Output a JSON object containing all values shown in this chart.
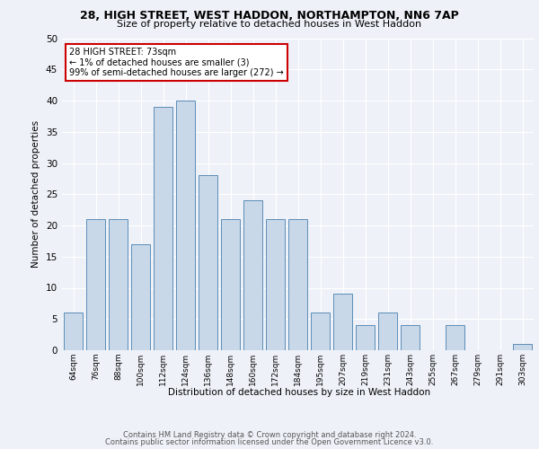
{
  "title1": "28, HIGH STREET, WEST HADDON, NORTHAMPTON, NN6 7AP",
  "title2": "Size of property relative to detached houses in West Haddon",
  "xlabel": "Distribution of detached houses by size in West Haddon",
  "ylabel": "Number of detached properties",
  "footer1": "Contains HM Land Registry data © Crown copyright and database right 2024.",
  "footer2": "Contains public sector information licensed under the Open Government Licence v3.0.",
  "annotation_line1": "28 HIGH STREET: 73sqm",
  "annotation_line2": "← 1% of detached houses are smaller (3)",
  "annotation_line3": "99% of semi-detached houses are larger (272) →",
  "bar_color": "#c8d8e8",
  "bar_edge_color": "#5b8db8",
  "annotation_box_color": "#ffffff",
  "annotation_box_edge": "#cc0000",
  "bg_color": "#eef2f8",
  "plot_bg_color": "#eef2f8",
  "categories": [
    "64sqm",
    "76sqm",
    "88sqm",
    "100sqm",
    "112sqm",
    "124sqm",
    "136sqm",
    "148sqm",
    "160sqm",
    "172sqm",
    "184sqm",
    "195sqm",
    "207sqm",
    "219sqm",
    "231sqm",
    "243sqm",
    "255sqm",
    "267sqm",
    "279sqm",
    "291sqm",
    "303sqm"
  ],
  "values": [
    6,
    21,
    21,
    17,
    39,
    40,
    28,
    21,
    24,
    21,
    21,
    6,
    9,
    4,
    6,
    4,
    0,
    4,
    0,
    0,
    1
  ],
  "ylim": [
    0,
    50
  ],
  "yticks": [
    0,
    5,
    10,
    15,
    20,
    25,
    30,
    35,
    40,
    45,
    50
  ]
}
